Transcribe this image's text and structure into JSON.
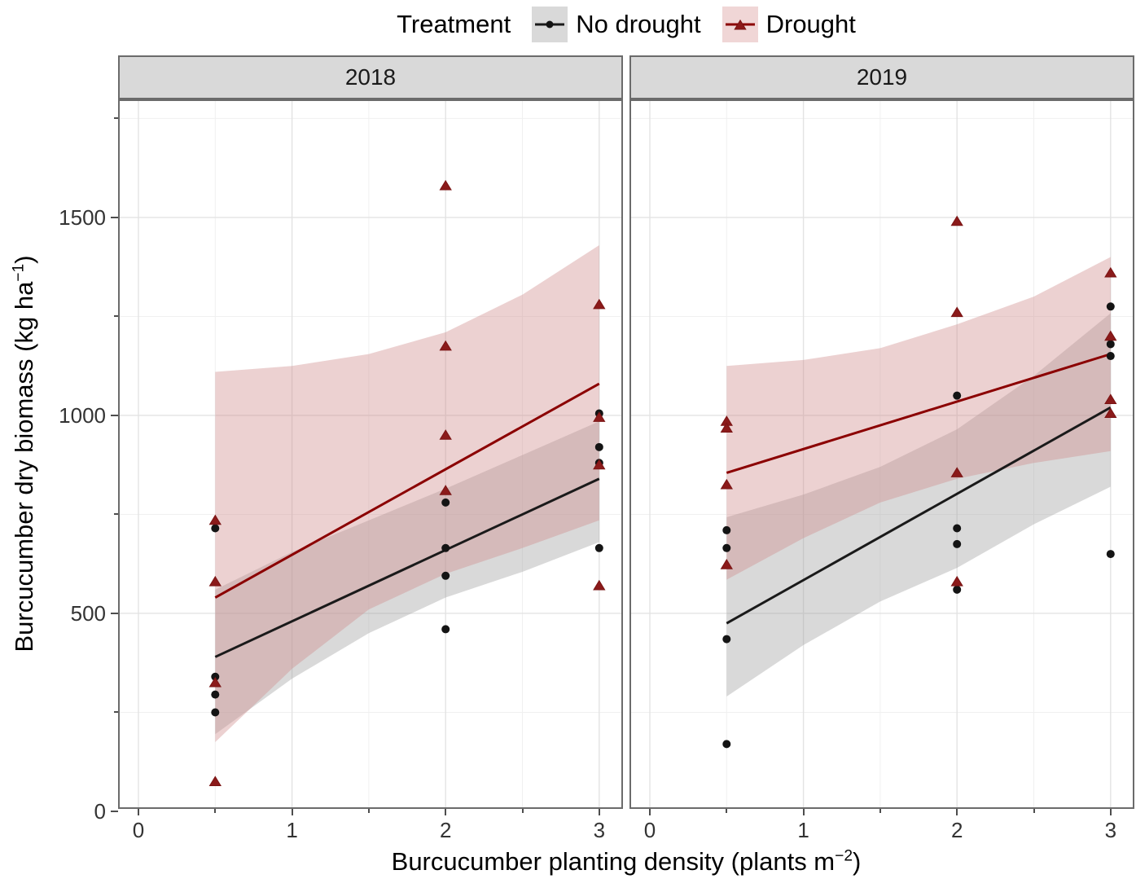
{
  "legend": {
    "title": "Treatment",
    "items": [
      {
        "label": "No drought",
        "marker": "circle",
        "color": "#1a1a1a",
        "marker_fill": "#141414",
        "key_bg": "#d9d9d9"
      },
      {
        "label": "Drought",
        "marker": "triangle",
        "color": "#8b0000",
        "marker_fill": "#8b1a1a",
        "key_bg": "#f0d6d6"
      }
    ]
  },
  "axes": {
    "x": {
      "prefix": "Burcucumber planting density (plants m",
      "sup": "−2",
      "suffix": ")"
    },
    "y": {
      "prefix": "Burcucumber dry biomass (kg ha",
      "sup": "−1",
      "suffix": ")"
    }
  },
  "panel": {
    "bg": "#ffffff",
    "border": "#6b6b6b",
    "strip_bg": "#d9d9d9",
    "grid_major": "#e3e3e3",
    "grid_minor": "#f0f0f0",
    "tick_color": "#4d4d4d"
  },
  "chart_data": {
    "type": "scatter",
    "title": "",
    "xlabel": "Burcucumber planting density (plants m−2)",
    "ylabel": "Burcucumber dry biomass (kg ha−1)",
    "x_ticks": [
      0,
      1,
      2,
      3
    ],
    "x_minor_ticks": [
      0.5,
      1.5,
      2.5
    ],
    "y_ticks": [
      0,
      500,
      1000,
      1500
    ],
    "y_minor_ticks": [
      250,
      750,
      1250,
      1750
    ],
    "xlim": [
      -0.13,
      3.16
    ],
    "ylim": [
      0,
      1798
    ],
    "grid": true,
    "legend_position": "top",
    "facets": [
      {
        "label": "2018",
        "series": [
          {
            "name": "No drought",
            "marker": "circle",
            "color": "#1a1a1a",
            "marker_fill": "#141414",
            "ci_fill": "#a0a0a0",
            "ci_opacity": 0.4,
            "points": [
              [
                0.5,
                715
              ],
              [
                0.5,
                340
              ],
              [
                0.5,
                295
              ],
              [
                0.5,
                250
              ],
              [
                2,
                780
              ],
              [
                2,
                665
              ],
              [
                2,
                595
              ],
              [
                2,
                460
              ],
              [
                3,
                1005
              ],
              [
                3,
                920
              ],
              [
                3,
                880
              ],
              [
                3,
                665
              ]
            ],
            "trend": {
              "x": [
                0.5,
                3
              ],
              "y": [
                390,
                840
              ]
            },
            "ci": {
              "x": [
                0.5,
                1,
                1.5,
                2,
                2.5,
                3
              ],
              "upper": [
                560,
                655,
                735,
                815,
                900,
                985
              ],
              "lower": [
                195,
                335,
                450,
                540,
                605,
                680
              ]
            }
          },
          {
            "name": "Drought",
            "marker": "triangle",
            "color": "#8b0000",
            "marker_fill": "#8b1a1a",
            "ci_fill": "#d08c8c",
            "ci_opacity": 0.4,
            "points": [
              [
                0.5,
                735
              ],
              [
                0.5,
                580
              ],
              [
                0.5,
                325
              ],
              [
                0.5,
                75
              ],
              [
                2,
                1580
              ],
              [
                2,
                1175
              ],
              [
                2,
                950
              ],
              [
                2,
                810
              ],
              [
                3,
                1280
              ],
              [
                3,
                995
              ],
              [
                3,
                875
              ],
              [
                3,
                570
              ]
            ],
            "trend": {
              "x": [
                0.5,
                3
              ],
              "y": [
                540,
                1080
              ]
            },
            "ci": {
              "x": [
                0.5,
                1,
                1.5,
                2,
                2.5,
                3
              ],
              "upper": [
                1110,
                1125,
                1155,
                1210,
                1305,
                1430
              ],
              "lower": [
                175,
                360,
                510,
                600,
                665,
                735
              ]
            }
          }
        ]
      },
      {
        "label": "2019",
        "series": [
          {
            "name": "No drought",
            "marker": "circle",
            "color": "#1a1a1a",
            "marker_fill": "#141414",
            "ci_fill": "#a0a0a0",
            "ci_opacity": 0.4,
            "points": [
              [
                0.5,
                710
              ],
              [
                0.5,
                665
              ],
              [
                0.5,
                435
              ],
              [
                0.5,
                170
              ],
              [
                2,
                1050
              ],
              [
                2,
                715
              ],
              [
                2,
                675
              ],
              [
                2,
                560
              ],
              [
                3,
                1275
              ],
              [
                3,
                1180
              ],
              [
                3,
                1150
              ],
              [
                3,
                650
              ]
            ],
            "trend": {
              "x": [
                0.5,
                3
              ],
              "y": [
                475,
                1020
              ]
            },
            "ci": {
              "x": [
                0.5,
                1,
                1.5,
                2,
                2.5,
                3
              ],
              "upper": [
                743,
                800,
                870,
                965,
                1100,
                1258
              ],
              "lower": [
                290,
                420,
                530,
                615,
                725,
                820
              ]
            }
          },
          {
            "name": "Drought",
            "marker": "triangle",
            "color": "#8b0000",
            "marker_fill": "#8b1a1a",
            "ci_fill": "#d08c8c",
            "ci_opacity": 0.4,
            "points": [
              [
                0.5,
                985
              ],
              [
                0.5,
                968
              ],
              [
                0.5,
                825
              ],
              [
                0.5,
                623
              ],
              [
                2,
                1490
              ],
              [
                2,
                1260
              ],
              [
                2,
                855
              ],
              [
                2,
                580
              ],
              [
                3,
                1360
              ],
              [
                3,
                1200
              ],
              [
                3,
                1040
              ],
              [
                3,
                1005
              ]
            ],
            "trend": {
              "x": [
                0.5,
                3
              ],
              "y": [
                855,
                1155
              ]
            },
            "ci": {
              "x": [
                0.5,
                1,
                1.5,
                2,
                2.5,
                3
              ],
              "upper": [
                1125,
                1140,
                1170,
                1230,
                1300,
                1400
              ],
              "lower": [
                585,
                690,
                780,
                840,
                880,
                910
              ]
            }
          }
        ]
      }
    ]
  }
}
